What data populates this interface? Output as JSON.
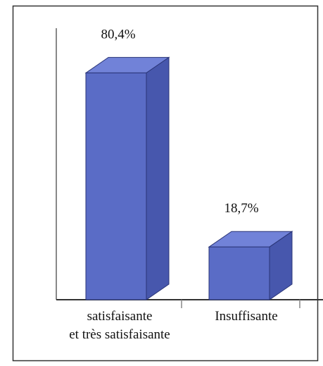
{
  "chart_data": {
    "type": "bar3d",
    "categories": [
      "satisfaisante\net très satisfaisante",
      "Insuffisante"
    ],
    "values": [
      80.4,
      18.7
    ],
    "value_labels": [
      "80,4%",
      "18,7%"
    ],
    "color": "#5a6cc6",
    "ylim": [
      0,
      100
    ]
  }
}
